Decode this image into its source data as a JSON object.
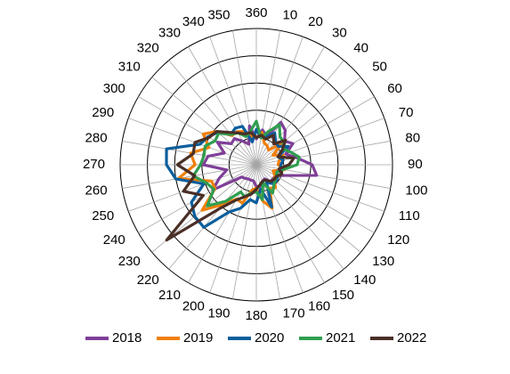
{
  "chart_data": {
    "type": "radar",
    "angle_labels": [
      "360",
      "10",
      "20",
      "30",
      "40",
      "50",
      "60",
      "70",
      "80",
      "90",
      "100",
      "110",
      "120",
      "130",
      "140",
      "150",
      "160",
      "170",
      "180",
      "190",
      "200",
      "210",
      "220",
      "230",
      "240",
      "250",
      "260",
      "270",
      "280",
      "290",
      "300",
      "310",
      "320",
      "330",
      "340",
      "350"
    ],
    "radial_range": [
      0,
      1
    ],
    "radial_gridlines": [
      0.2,
      0.4,
      0.6,
      0.8,
      1.0
    ],
    "legend_position": "bottom",
    "series": [
      {
        "name": "2018",
        "color": "#7f3f98",
        "values": [
          0.19,
          0.26,
          0.22,
          0.36,
          0.33,
          0.27,
          0.31,
          0.23,
          0.3,
          0.41,
          0.45,
          0.23,
          0.16,
          0.16,
          0.16,
          0.12,
          0.13,
          0.16,
          0.16,
          0.12,
          0.12,
          0.12,
          0.13,
          0.14,
          0.37,
          0.29,
          0.22,
          0.39,
          0.36,
          0.25,
          0.33,
          0.24,
          0.25,
          0.2,
          0.16,
          0.29
        ]
      },
      {
        "name": "2019",
        "color": "#f07f09",
        "values": [
          0.2,
          0.24,
          0.17,
          0.16,
          0.14,
          0.25,
          0.14,
          0.21,
          0.17,
          0.16,
          0.21,
          0.13,
          0.16,
          0.17,
          0.22,
          0.2,
          0.34,
          0.27,
          0.17,
          0.19,
          0.3,
          0.29,
          0.38,
          0.52,
          0.35,
          0.35,
          0.58,
          0.45,
          0.49,
          0.37,
          0.45,
          0.38,
          0.28,
          0.28,
          0.26,
          0.21
        ]
      },
      {
        "name": "2020",
        "color": "#0a5e9c",
        "values": [
          0.26,
          0.2,
          0.22,
          0.27,
          0.22,
          0.21,
          0.27,
          0.17,
          0.2,
          0.18,
          0.18,
          0.16,
          0.18,
          0.19,
          0.18,
          0.15,
          0.33,
          0.18,
          0.28,
          0.26,
          0.34,
          0.4,
          0.6,
          0.59,
          0.55,
          0.41,
          0.6,
          0.66,
          0.67,
          0.44,
          0.41,
          0.37,
          0.29,
          0.31,
          0.3,
          0.17
        ]
      },
      {
        "name": "2021",
        "color": "#2f9e4f",
        "values": [
          0.32,
          0.2,
          0.26,
          0.34,
          0.27,
          0.26,
          0.23,
          0.27,
          0.32,
          0.3,
          0.2,
          0.16,
          0.17,
          0.18,
          0.2,
          0.24,
          0.14,
          0.26,
          0.2,
          0.21,
          0.25,
          0.23,
          0.35,
          0.47,
          0.36,
          0.39,
          0.47,
          0.41,
          0.39,
          0.4,
          0.35,
          0.36,
          0.29,
          0.27,
          0.22,
          0.25
        ]
      },
      {
        "name": "2022",
        "color": "#4a2f27",
        "values": [
          0.2,
          0.22,
          0.2,
          0.25,
          0.2,
          0.28,
          0.22,
          0.17,
          0.28,
          0.24,
          0.17,
          0.2,
          0.17,
          0.17,
          0.16,
          0.13,
          0.13,
          0.15,
          0.18,
          0.22,
          0.25,
          0.3,
          0.42,
          0.86,
          0.45,
          0.57,
          0.46,
          0.58,
          0.47,
          0.48,
          0.4,
          0.38,
          0.31,
          0.27,
          0.24,
          0.24
        ]
      }
    ]
  }
}
